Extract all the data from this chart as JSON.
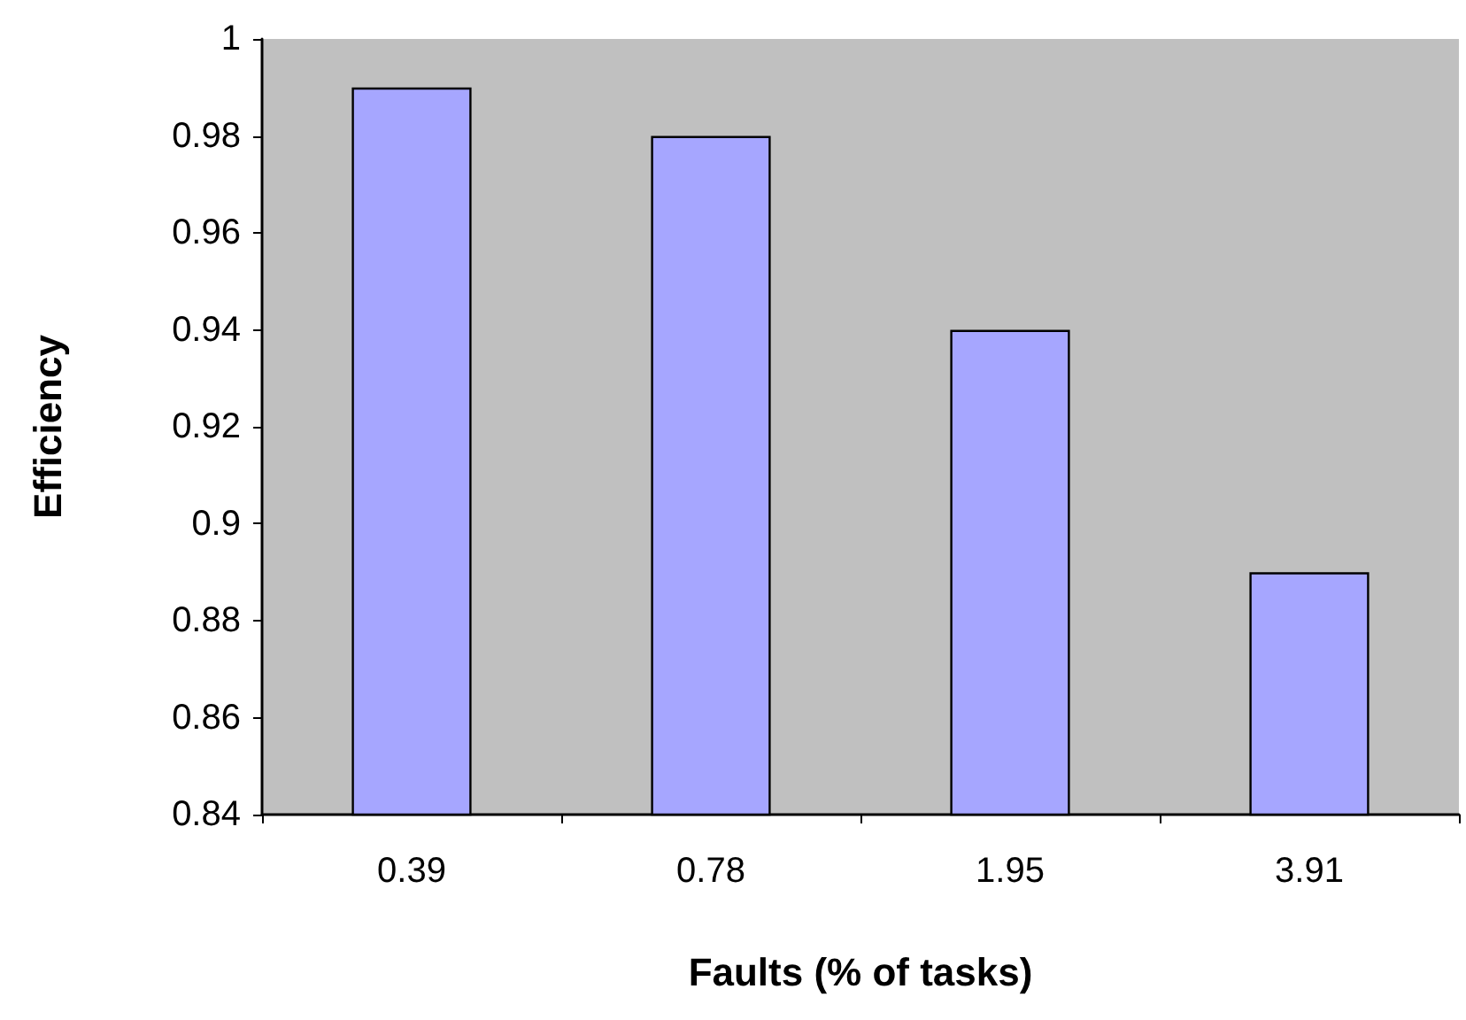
{
  "chart_data": {
    "type": "bar",
    "xlabel": "Faults (% of tasks)",
    "ylabel": "Efficiency",
    "categories": [
      "0.39",
      "0.78",
      "1.95",
      "3.91"
    ],
    "values": [
      0.99,
      0.98,
      0.94,
      0.89
    ],
    "color": "#a6a6ff",
    "ylim": [
      0.84,
      1
    ],
    "yticks": [
      0.84,
      0.86,
      0.88,
      0.9,
      0.92,
      0.94,
      0.96,
      0.98,
      1
    ],
    "grid": false
  }
}
